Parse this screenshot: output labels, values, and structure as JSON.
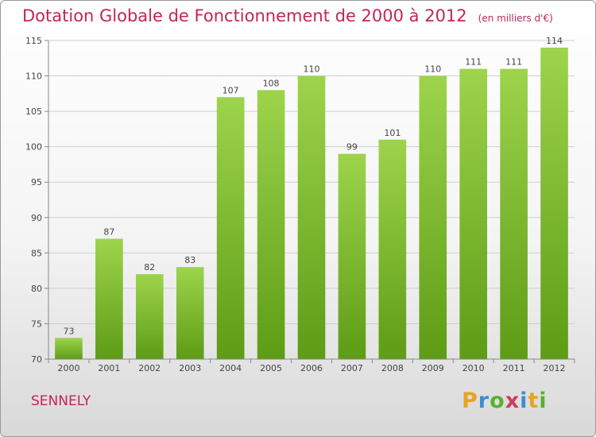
{
  "header": {
    "title": "Dotation Globale de Fonctionnement de 2000 à 2012",
    "subtitle": "(en milliers d'€)"
  },
  "footer": {
    "commune": "SENNELY",
    "logo_letters": [
      {
        "char": "P",
        "color": "#e8a320"
      },
      {
        "char": "r",
        "color": "#3a8fd0"
      },
      {
        "char": "o",
        "color": "#5ab030"
      },
      {
        "char": "x",
        "color": "#d03a5a"
      },
      {
        "char": "i",
        "color": "#3a8fd0"
      },
      {
        "char": "t",
        "color": "#e8a320"
      },
      {
        "char": "i",
        "color": "#5ab030"
      }
    ]
  },
  "chart_data": {
    "type": "bar",
    "categories": [
      "2000",
      "2001",
      "2002",
      "2003",
      "2004",
      "2005",
      "2006",
      "2007",
      "2008",
      "2009",
      "2010",
      "2011",
      "2012"
    ],
    "values": [
      73,
      87,
      82,
      83,
      107,
      108,
      110,
      99,
      101,
      110,
      111,
      111,
      114
    ],
    "title": "Dotation Globale de Fonctionnement de 2000 à 2012",
    "subtitle": "(en milliers d'€)",
    "xlabel": "",
    "ylabel": "",
    "ylim": [
      70,
      115
    ],
    "yticks": [
      70,
      75,
      80,
      85,
      90,
      95,
      100,
      105,
      110,
      115
    ],
    "grid": true,
    "bar_color_top": "#9dd44c",
    "bar_color_bottom": "#5e9c16"
  }
}
